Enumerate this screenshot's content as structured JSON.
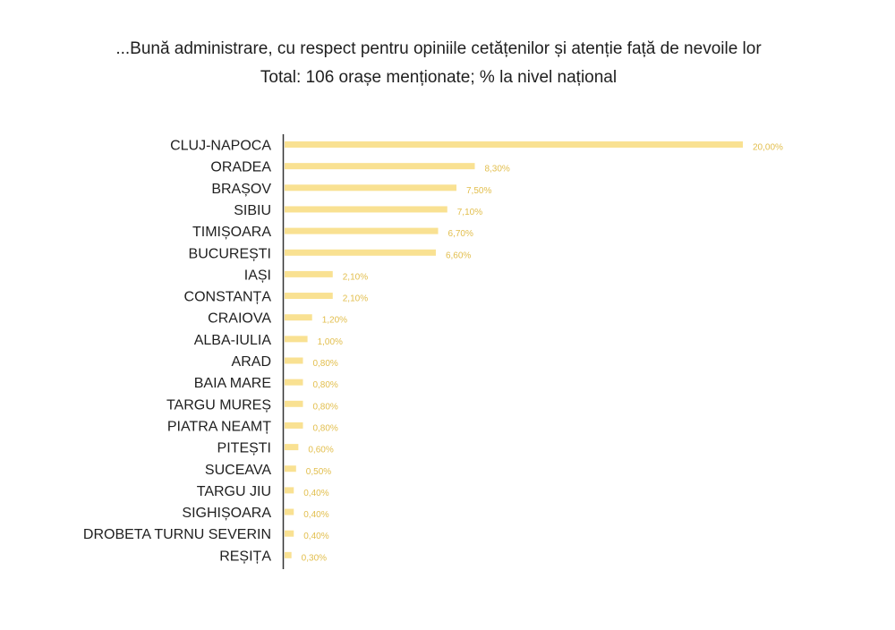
{
  "chart_data": {
    "type": "bar",
    "orientation": "horizontal",
    "title": "...Bună administrare, cu respect pentru opiniile cetățenilor și atenție față de nevoile lor",
    "subtitle": "Total: 106 orașe menționate; % la nivel național",
    "categories": [
      "CLUJ-NAPOCA",
      "ORADEA",
      "BRAȘOV",
      "SIBIU",
      "TIMIȘOARA",
      "BUCUREȘTI",
      "IAȘI",
      "CONSTANȚA",
      "CRAIOVA",
      "ALBA-IULIA",
      "ARAD",
      "BAIA MARE",
      "TARGU MUREȘ",
      "PIATRA NEAMȚ",
      "PITEȘTI",
      "SUCEAVA",
      "TARGU JIU",
      "SIGHIȘOARA",
      "DROBETA TURNU SEVERIN",
      "REȘIȚA"
    ],
    "values": [
      20.0,
      8.3,
      7.5,
      7.1,
      6.7,
      6.6,
      2.1,
      2.1,
      1.2,
      1.0,
      0.8,
      0.8,
      0.8,
      0.8,
      0.6,
      0.5,
      0.4,
      0.4,
      0.4,
      0.3
    ],
    "value_labels": [
      "20,00%",
      "8,30%",
      "7,50%",
      "7,10%",
      "6,70%",
      "6,60%",
      "2,10%",
      "2,10%",
      "1,20%",
      "1,00%",
      "0,80%",
      "0,80%",
      "0,80%",
      "0,80%",
      "0,60%",
      "0,50%",
      "0,40%",
      "0,40%",
      "0,40%",
      "0,30%"
    ],
    "xlim": [
      0,
      20
    ],
    "grid": false,
    "legend": false
  },
  "colors": {
    "bar": "#F9E192",
    "value_label": "#E2BE4C",
    "category_label": "#1F1F1F",
    "axis": "#333333",
    "title": "#1F1F1F"
  }
}
